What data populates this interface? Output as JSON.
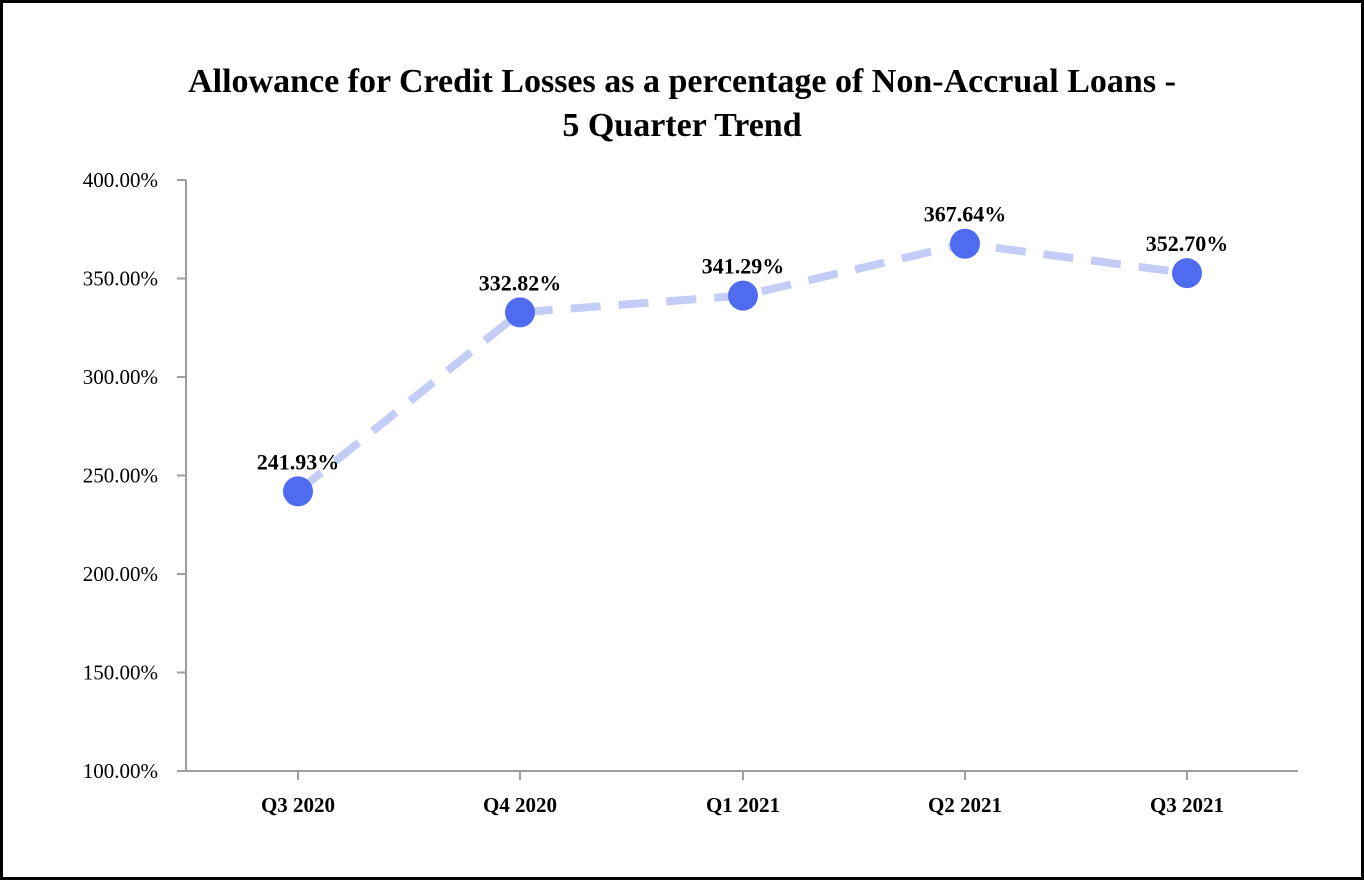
{
  "chart_data": {
    "type": "line",
    "title_lines": [
      "Allowance for Credit Losses as a percentage of Non-Accrual Loans -",
      "5 Quarter Trend"
    ],
    "categories": [
      "Q3 2020",
      "Q4 2020",
      "Q1 2021",
      "Q2 2021",
      "Q3 2021"
    ],
    "series": [
      {
        "values": [
          241.93,
          332.82,
          341.29,
          367.64,
          352.7
        ],
        "data_labels": [
          "241.93%",
          "332.82%",
          "341.29%",
          "367.64%",
          "352.70%"
        ],
        "line_color": "#c3cdf5",
        "line_style": "dashed",
        "marker_color": "#4f6bef"
      }
    ],
    "ylim": [
      100,
      400
    ],
    "yticks": [
      100,
      150,
      200,
      250,
      300,
      350,
      400
    ],
    "ytick_labels": [
      "100.00%",
      "150.00%",
      "200.00%",
      "250.00%",
      "300.00%",
      "350.00%",
      "400.00%"
    ],
    "axis_color": "#9e9e9e",
    "grid": false,
    "legend": "none"
  }
}
